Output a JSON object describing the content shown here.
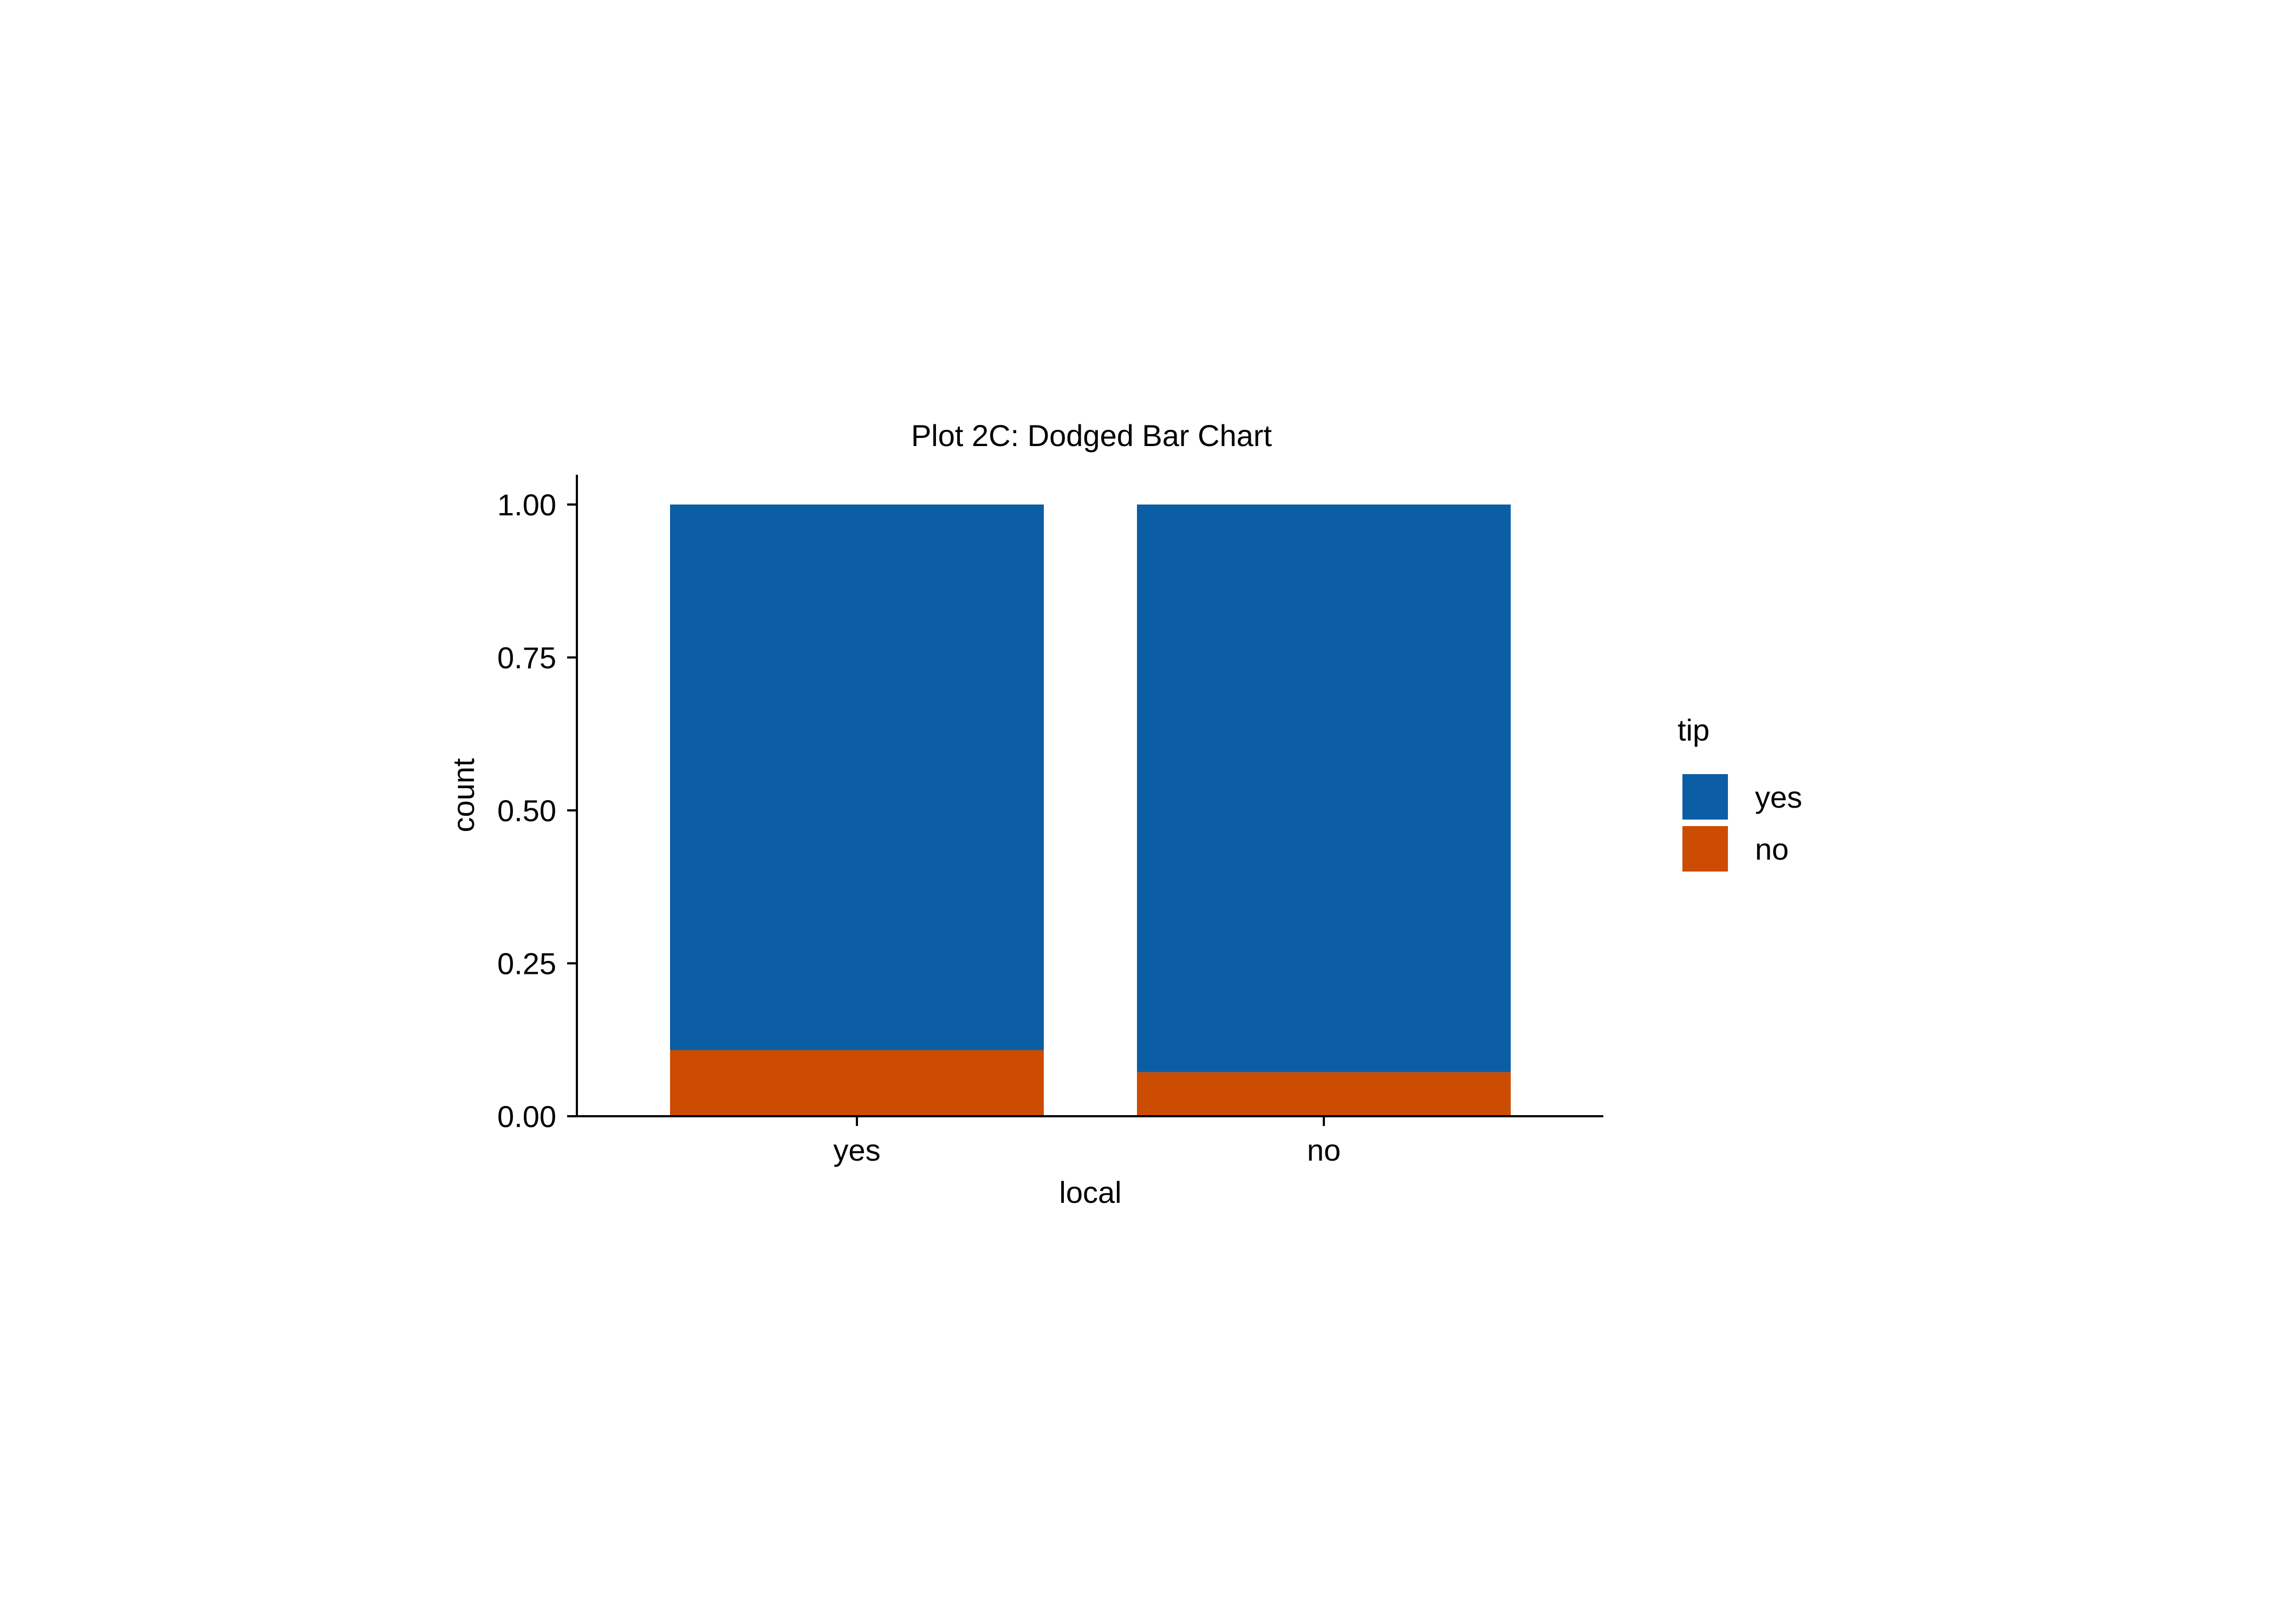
{
  "chart_data": {
    "type": "bar",
    "stacking": "fill",
    "title": "Plot 2C: Dodged Bar Chart",
    "xlabel": "local",
    "ylabel": "count",
    "categories": [
      "yes",
      "no"
    ],
    "ylim": [
      0,
      1.05
    ],
    "yticks": [
      0,
      0.25,
      0.5,
      0.75,
      1.0
    ],
    "ytick_labels": [
      "0.00",
      "0.25",
      "0.50",
      "0.75",
      "1.00"
    ],
    "grid": false,
    "legend": {
      "title": "tip",
      "position": "right"
    },
    "series": [
      {
        "name": "no",
        "values": [
          0.108,
          0.072
        ],
        "color": "#CC4C02"
      },
      {
        "name": "yes",
        "values": [
          0.892,
          0.928
        ],
        "color": "#0C5EA4"
      }
    ],
    "legend_order": [
      "yes",
      "no"
    ]
  }
}
